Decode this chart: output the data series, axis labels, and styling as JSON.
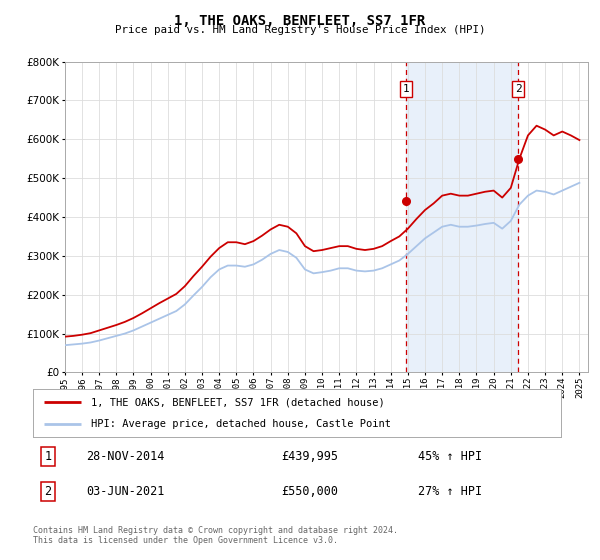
{
  "title": "1, THE OAKS, BENFLEET, SS7 1FR",
  "subtitle": "Price paid vs. HM Land Registry's House Price Index (HPI)",
  "legend_line1": "1, THE OAKS, BENFLEET, SS7 1FR (detached house)",
  "legend_line2": "HPI: Average price, detached house, Castle Point",
  "transaction1_date": "28-NOV-2014",
  "transaction1_price": "£439,995",
  "transaction1_hpi": "45% ↑ HPI",
  "transaction1_year": 2014.91,
  "transaction1_value": 439995,
  "transaction2_date": "03-JUN-2021",
  "transaction2_price": "£550,000",
  "transaction2_hpi": "27% ↑ HPI",
  "transaction2_year": 2021.42,
  "transaction2_value": 550000,
  "footnote1": "Contains HM Land Registry data © Crown copyright and database right 2024.",
  "footnote2": "This data is licensed under the Open Government Licence v3.0.",
  "hpi_color": "#aac4e8",
  "price_color": "#cc0000",
  "vline_color": "#cc0000",
  "span_color": "#e8f0fa",
  "plot_bg_color": "#ffffff",
  "grid_color": "#dddddd",
  "ylim": [
    0,
    800000
  ],
  "xlim_start": 1995.0,
  "xlim_end": 2025.5,
  "years_hpi": [
    1995.0,
    1995.5,
    1996.0,
    1996.5,
    1997.0,
    1997.5,
    1998.0,
    1998.5,
    1999.0,
    1999.5,
    2000.0,
    2000.5,
    2001.0,
    2001.5,
    2002.0,
    2002.5,
    2003.0,
    2003.5,
    2004.0,
    2004.5,
    2005.0,
    2005.5,
    2006.0,
    2006.5,
    2007.0,
    2007.5,
    2008.0,
    2008.5,
    2009.0,
    2009.5,
    2010.0,
    2010.5,
    2011.0,
    2011.5,
    2012.0,
    2012.5,
    2013.0,
    2013.5,
    2014.0,
    2014.5,
    2015.0,
    2015.5,
    2016.0,
    2016.5,
    2017.0,
    2017.5,
    2018.0,
    2018.5,
    2019.0,
    2019.5,
    2020.0,
    2020.5,
    2021.0,
    2021.5,
    2022.0,
    2022.5,
    2023.0,
    2023.5,
    2024.0,
    2024.5,
    2025.0
  ],
  "hpi_values": [
    70000,
    72000,
    74000,
    77000,
    82000,
    88000,
    94000,
    100000,
    108000,
    118000,
    128000,
    138000,
    148000,
    158000,
    175000,
    198000,
    220000,
    245000,
    265000,
    275000,
    275000,
    272000,
    278000,
    290000,
    305000,
    315000,
    310000,
    295000,
    265000,
    255000,
    258000,
    262000,
    268000,
    268000,
    262000,
    260000,
    262000,
    268000,
    278000,
    288000,
    305000,
    325000,
    345000,
    360000,
    375000,
    380000,
    375000,
    375000,
    378000,
    382000,
    385000,
    370000,
    390000,
    432000,
    455000,
    468000,
    465000,
    458000,
    468000,
    478000,
    488000
  ],
  "red_values": [
    92000,
    94000,
    97000,
    101000,
    108000,
    115000,
    122000,
    130000,
    140000,
    152000,
    165000,
    178000,
    190000,
    202000,
    222000,
    248000,
    272000,
    298000,
    320000,
    335000,
    335000,
    330000,
    338000,
    352000,
    368000,
    380000,
    375000,
    358000,
    325000,
    312000,
    315000,
    320000,
    325000,
    325000,
    318000,
    315000,
    318000,
    325000,
    338000,
    350000,
    370000,
    395000,
    418000,
    435000,
    455000,
    460000,
    455000,
    455000,
    460000,
    465000,
    468000,
    450000,
    475000,
    550000,
    610000,
    635000,
    625000,
    610000,
    620000,
    610000,
    598000
  ]
}
